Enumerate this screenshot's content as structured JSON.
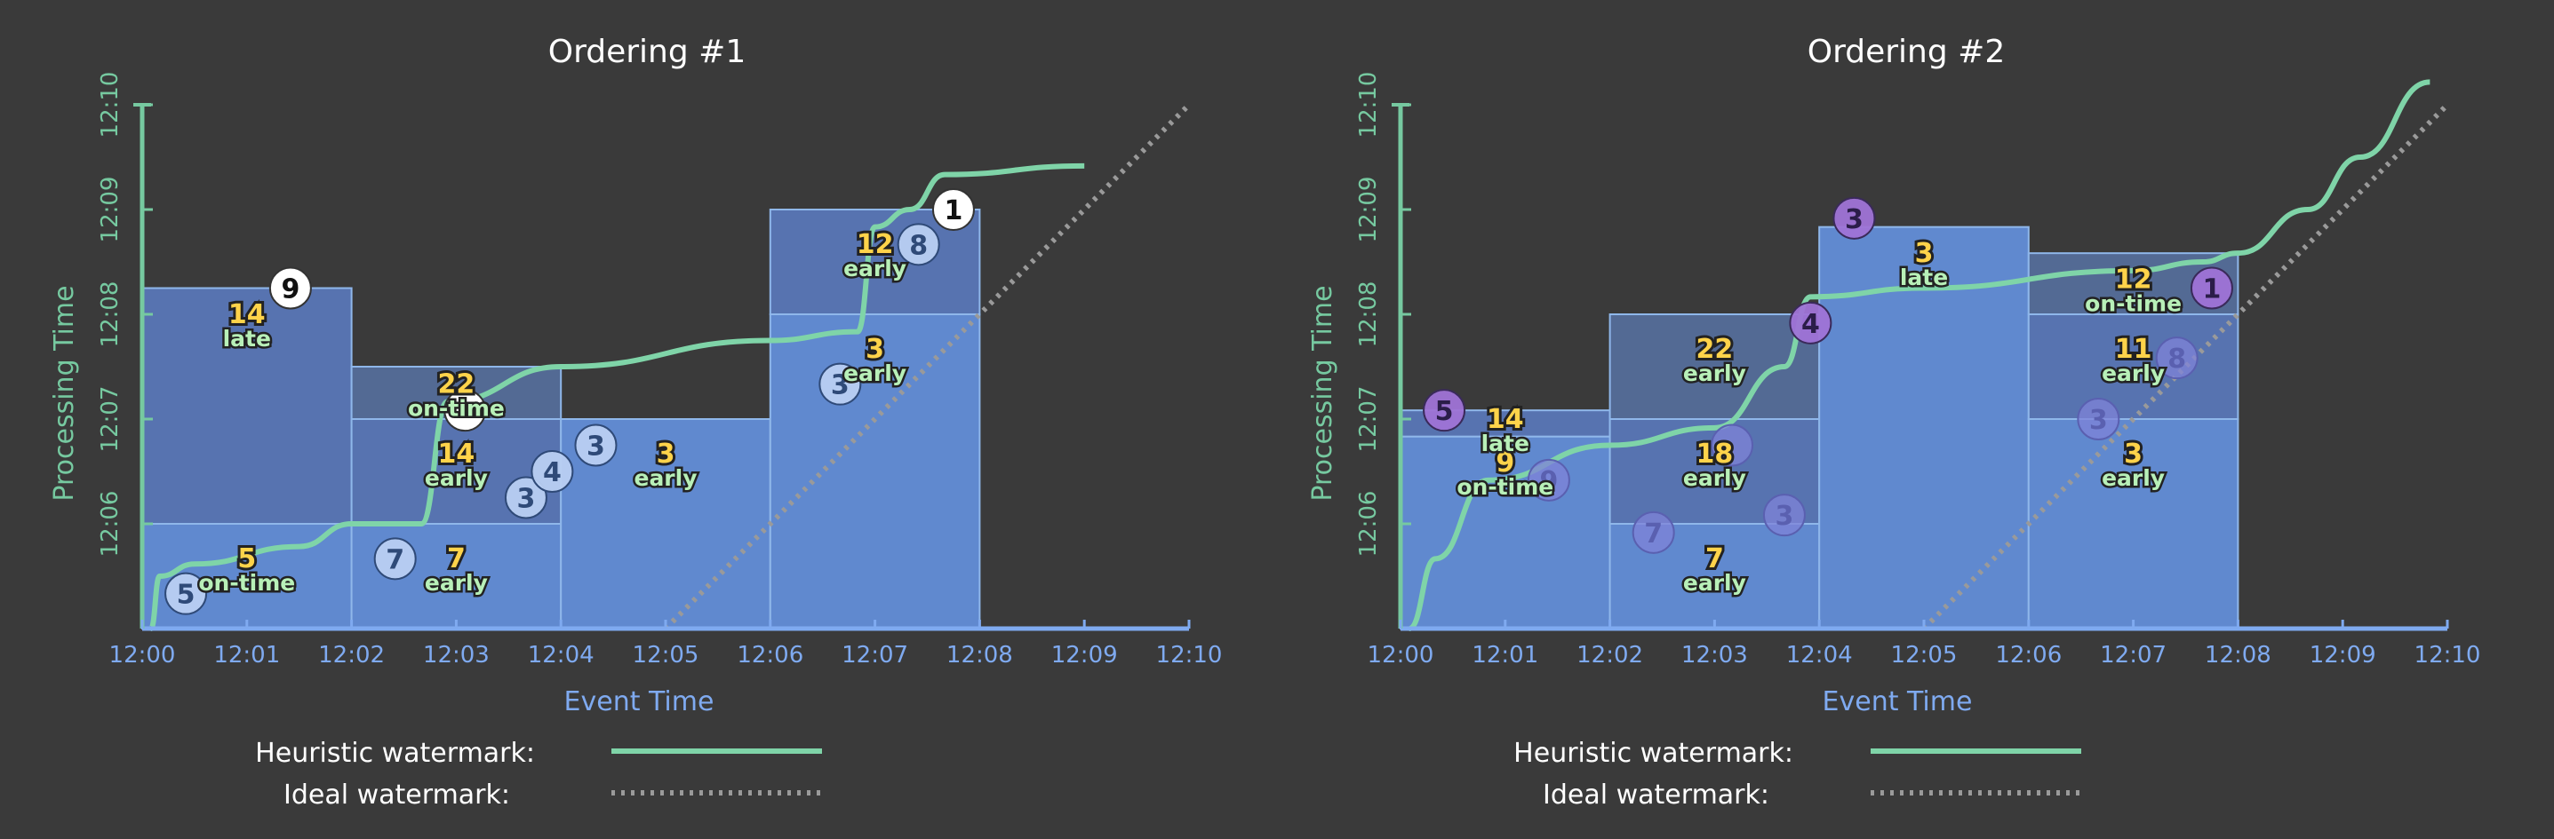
{
  "chart_data": [
    {
      "type": "line",
      "title": "Ordering #1",
      "xlabel": "Event Time",
      "ylabel": "Processing Time",
      "x_ticks": [
        "12:00",
        "12:01",
        "12:02",
        "12:03",
        "12:04",
        "12:05",
        "12:06",
        "12:07",
        "12:08",
        "12:09",
        "12:10"
      ],
      "y_ticks": [
        "12:06",
        "12:07",
        "12:08",
        "12:09",
        "12:10"
      ],
      "xlim": [
        "12:00",
        "12:10"
      ],
      "ylim": [
        "12:05",
        "12:10"
      ],
      "panes": [
        {
          "x0": "12:00",
          "x1": "12:02",
          "layers": [
            "12:06",
            "12:08:15"
          ]
        },
        {
          "x0": "12:02",
          "x1": "12:04",
          "layers": [
            "12:06",
            "12:07",
            "12:07:30"
          ]
        },
        {
          "x0": "12:04",
          "x1": "12:06",
          "layers": [
            "12:07"
          ]
        },
        {
          "x0": "12:06",
          "x1": "12:08",
          "layers": [
            "12:08",
            "12:09"
          ]
        }
      ],
      "pane_results": [
        {
          "x": "12:01",
          "y": "12:05:35",
          "value": "5",
          "kind": "on-time"
        },
        {
          "x": "12:01",
          "y": "12:07:55",
          "value": "14",
          "kind": "late"
        },
        {
          "x": "12:03",
          "y": "12:05:35",
          "value": "7",
          "kind": "early"
        },
        {
          "x": "12:03",
          "y": "12:06:35",
          "value": "14",
          "kind": "early"
        },
        {
          "x": "12:03",
          "y": "12:07:15",
          "value": "22",
          "kind": "on-time"
        },
        {
          "x": "12:05",
          "y": "12:06:35",
          "value": "3",
          "kind": "early"
        },
        {
          "x": "12:07",
          "y": "12:07:35",
          "value": "3",
          "kind": "early"
        },
        {
          "x": "12:07",
          "y": "12:08:35",
          "value": "12",
          "kind": "early"
        }
      ],
      "data_points": [
        {
          "x": "12:00:25",
          "y": "12:05:20",
          "value": "5",
          "style": "normal"
        },
        {
          "x": "12:01:25",
          "y": "12:08:15",
          "value": "9",
          "style": "late"
        },
        {
          "x": "12:02:25",
          "y": "12:05:40",
          "value": "7",
          "style": "normal"
        },
        {
          "x": "12:03:05",
          "y": "12:07:05",
          "value": "",
          "style": "late"
        },
        {
          "x": "12:03:40",
          "y": "12:06:15",
          "value": "3",
          "style": "normal"
        },
        {
          "x": "12:03:55",
          "y": "12:06:30",
          "value": "4",
          "style": "normal"
        },
        {
          "x": "12:04:20",
          "y": "12:06:45",
          "value": "3",
          "style": "normal"
        },
        {
          "x": "12:06:40",
          "y": "12:07:20",
          "value": "3",
          "style": "normal"
        },
        {
          "x": "12:07:25",
          "y": "12:08:40",
          "value": "8",
          "style": "normal"
        },
        {
          "x": "12:07:45",
          "y": "12:09:00",
          "value": "1",
          "style": "late"
        }
      ],
      "heuristic_watermark": [
        [
          "12:00:05",
          "12:05"
        ],
        [
          "12:00:10",
          "12:05:30"
        ],
        [
          "12:00:30",
          "12:05:37"
        ],
        [
          "12:01:30",
          "12:05:47"
        ],
        [
          "12:02:00",
          "12:06:00"
        ],
        [
          "12:02:40",
          "12:06:00"
        ],
        [
          "12:02:55",
          "12:07:10"
        ],
        [
          "12:04:00",
          "12:07:30"
        ],
        [
          "12:06:00",
          "12:07:45"
        ],
        [
          "12:06:50",
          "12:07:50"
        ],
        [
          "12:07:00",
          "12:08:50"
        ],
        [
          "12:07:20",
          "12:09:00"
        ],
        [
          "12:07:40",
          "12:09:20"
        ],
        [
          "12:09:00",
          "12:09:25"
        ]
      ],
      "ideal_watermark": [
        [
          "12:05",
          "12:05"
        ],
        [
          "12:10",
          "12:10"
        ]
      ]
    },
    {
      "type": "line",
      "title": "Ordering #2",
      "xlabel": "Event Time",
      "ylabel": "Processing Time",
      "x_ticks": [
        "12:00",
        "12:01",
        "12:02",
        "12:03",
        "12:04",
        "12:05",
        "12:06",
        "12:07",
        "12:08",
        "12:09",
        "12:10"
      ],
      "y_ticks": [
        "12:06",
        "12:07",
        "12:08",
        "12:09",
        "12:10"
      ],
      "xlim": [
        "12:00",
        "12:10"
      ],
      "ylim": [
        "12:05",
        "12:10"
      ],
      "panes": [
        {
          "x0": "12:00",
          "x1": "12:02",
          "layers": [
            "12:06:50",
            "12:07:05"
          ]
        },
        {
          "x0": "12:02",
          "x1": "12:04",
          "layers": [
            "12:06",
            "12:07",
            "12:08"
          ]
        },
        {
          "x0": "12:04",
          "x1": "12:06",
          "layers": [
            "12:08:50"
          ]
        },
        {
          "x0": "12:06",
          "x1": "12:08",
          "layers": [
            "12:07",
            "12:08",
            "12:08:35"
          ]
        }
      ],
      "pane_results": [
        {
          "x": "12:01",
          "y": "12:06:30",
          "value": "9",
          "kind": "on-time"
        },
        {
          "x": "12:01",
          "y": "12:06:55",
          "value": "14",
          "kind": "late"
        },
        {
          "x": "12:03",
          "y": "12:05:35",
          "value": "7",
          "kind": "early"
        },
        {
          "x": "12:03",
          "y": "12:06:35",
          "value": "18",
          "kind": "early"
        },
        {
          "x": "12:03",
          "y": "12:07:35",
          "value": "22",
          "kind": "early"
        },
        {
          "x": "12:05",
          "y": "12:08:30",
          "value": "3",
          "kind": "late"
        },
        {
          "x": "12:07",
          "y": "12:06:35",
          "value": "3",
          "kind": "early"
        },
        {
          "x": "12:07",
          "y": "12:07:35",
          "value": "11",
          "kind": "early"
        },
        {
          "x": "12:07",
          "y": "12:08:15",
          "value": "12",
          "kind": "on-time"
        }
      ],
      "data_points": [
        {
          "x": "12:00:25",
          "y": "12:07:05",
          "value": "5",
          "style": "purple"
        },
        {
          "x": "12:01:25",
          "y": "12:06:25",
          "value": "9",
          "style": "faded"
        },
        {
          "x": "12:02:25",
          "y": "12:05:55",
          "value": "7",
          "style": "faded"
        },
        {
          "x": "12:03:10",
          "y": "12:06:45",
          "value": "",
          "style": "faded"
        },
        {
          "x": "12:03:40",
          "y": "12:06:05",
          "value": "3",
          "style": "faded"
        },
        {
          "x": "12:03:55",
          "y": "12:07:55",
          "value": "4",
          "style": "purple"
        },
        {
          "x": "12:04:20",
          "y": "12:08:55",
          "value": "3",
          "style": "purple"
        },
        {
          "x": "12:06:40",
          "y": "12:07:00",
          "value": "3",
          "style": "faded"
        },
        {
          "x": "12:07:25",
          "y": "12:07:35",
          "value": "8",
          "style": "faded"
        },
        {
          "x": "12:07:45",
          "y": "12:08:15",
          "value": "1",
          "style": "purple"
        }
      ],
      "heuristic_watermark": [
        [
          "12:00:05",
          "12:05"
        ],
        [
          "12:00:20",
          "12:05:40"
        ],
        [
          "12:00:50",
          "12:06:25"
        ],
        [
          "12:02:00",
          "12:06:45"
        ],
        [
          "12:03:00",
          "12:06:55"
        ],
        [
          "12:03:40",
          "12:07:30"
        ],
        [
          "12:03:55",
          "12:08:10"
        ],
        [
          "12:05:00",
          "12:08:15"
        ],
        [
          "12:07:00",
          "12:08:25"
        ],
        [
          "12:07:40",
          "12:08:30"
        ],
        [
          "12:08:00",
          "12:08:35"
        ],
        [
          "12:08:40",
          "12:09:00"
        ],
        [
          "12:09:10",
          "12:09:30"
        ],
        [
          "12:09:50",
          "12:10:13"
        ]
      ],
      "ideal_watermark": [
        [
          "12:05",
          "12:05"
        ],
        [
          "12:10",
          "12:10"
        ]
      ]
    }
  ],
  "legend": {
    "heuristic_label": "Heuristic watermark:",
    "ideal_label": "Ideal watermark:"
  },
  "colors": {
    "background": "#3a3a3a",
    "axis_x": "#7faaf0",
    "axis_y": "#76c9a0",
    "heuristic": "#7fd4a8",
    "ideal": "#9a9a9a",
    "pane_border": "#8fb7ea",
    "pane_low": "#6089cf",
    "pane_mid": "#5773b0",
    "pane_high": "#536a94",
    "result_num": "#ffd34a",
    "result_kind": "#b8f0b8",
    "dot_normal": "#b9cff2",
    "dot_late": "#ffffff",
    "dot_purple": "#9f73d6",
    "dot_faded": "#7f83d8"
  }
}
